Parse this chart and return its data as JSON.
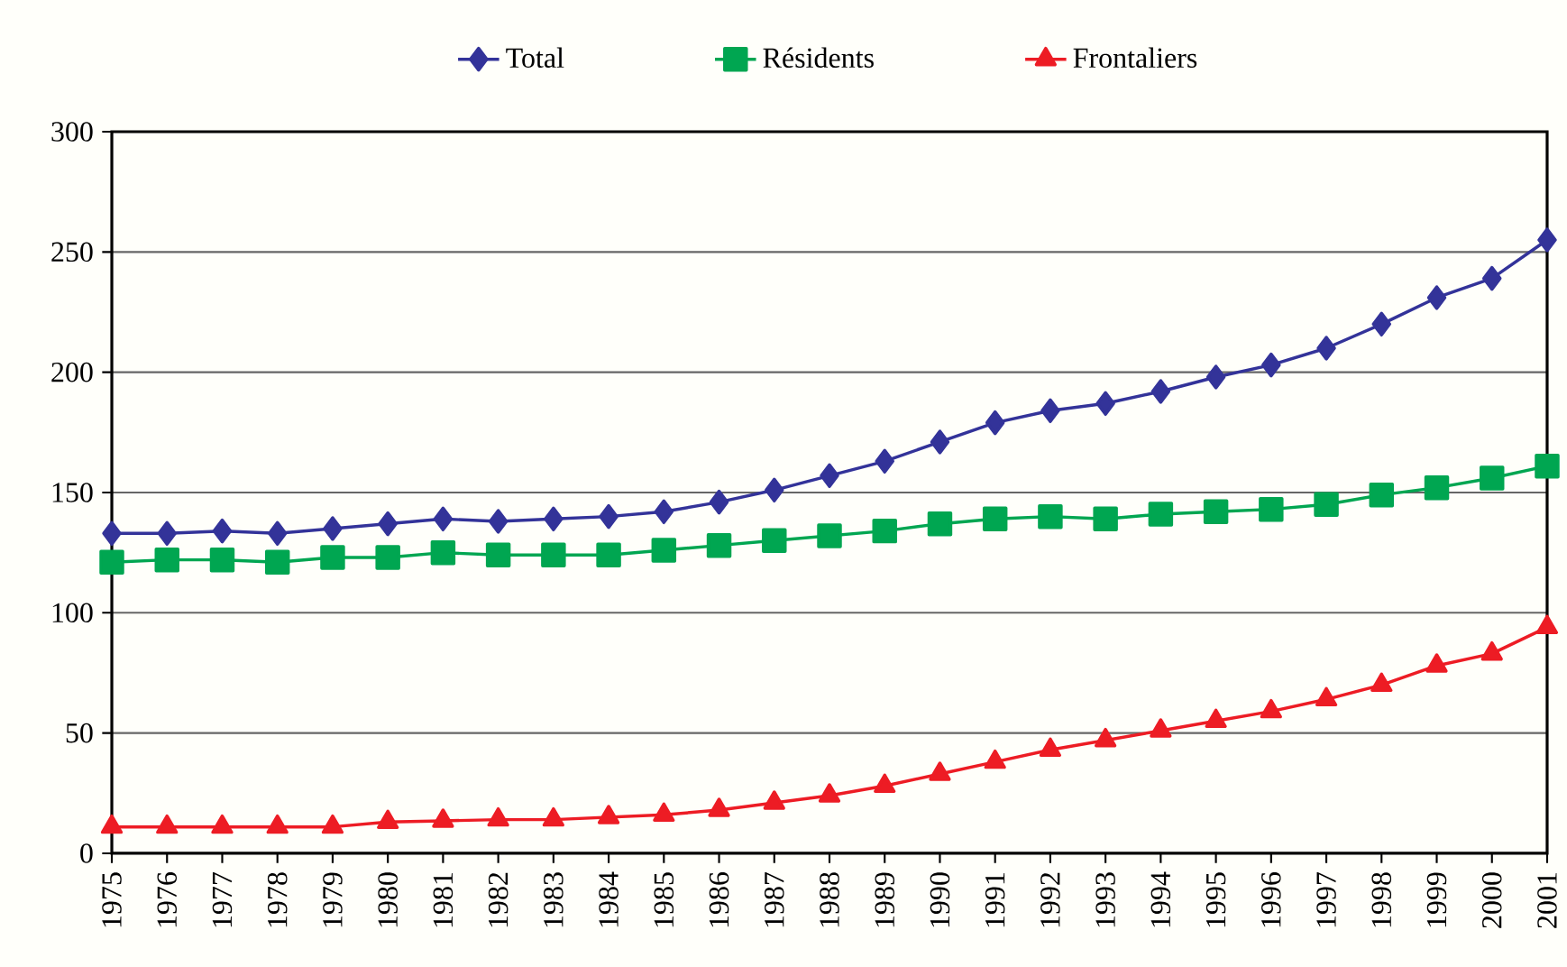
{
  "chart_data": {
    "type": "line",
    "categories": [
      "1975",
      "1976",
      "1977",
      "1978",
      "1979",
      "1980",
      "1981",
      "1982",
      "1983",
      "1984",
      "1985",
      "1986",
      "1987",
      "1988",
      "1989",
      "1990",
      "1991",
      "1992",
      "1993",
      "1994",
      "1995",
      "1996",
      "1997",
      "1998",
      "1999",
      "2000",
      "2001"
    ],
    "series": [
      {
        "name": "Total",
        "color": "#333399",
        "marker": "diamond",
        "values": [
          133,
          133,
          134,
          133,
          135,
          137,
          139,
          138,
          139,
          140,
          142,
          146,
          151,
          157,
          163,
          171,
          179,
          184,
          187,
          192,
          198,
          203,
          210,
          220,
          231,
          239,
          255
        ]
      },
      {
        "name": "Résidents",
        "color": "#00a651",
        "marker": "square",
        "values": [
          121,
          122,
          122,
          121,
          123,
          123,
          125,
          124,
          124,
          124,
          126,
          128,
          130,
          132,
          134,
          137,
          139,
          140,
          139,
          141,
          142,
          143,
          145,
          149,
          152,
          156,
          161
        ]
      },
      {
        "name": "Frontaliers",
        "color": "#ed1c24",
        "marker": "triangle",
        "values": [
          11,
          11,
          11,
          11,
          11,
          13,
          13.5,
          14,
          14,
          15,
          16,
          18,
          21,
          24,
          28,
          33,
          38,
          43,
          47,
          51,
          55,
          59,
          64,
          70,
          78,
          83,
          94
        ]
      }
    ],
    "ylim": [
      0,
      300
    ],
    "yticks": [
      0,
      50,
      100,
      150,
      200,
      250,
      300
    ],
    "grid": "y",
    "legend": "top",
    "line_style": "solid"
  }
}
